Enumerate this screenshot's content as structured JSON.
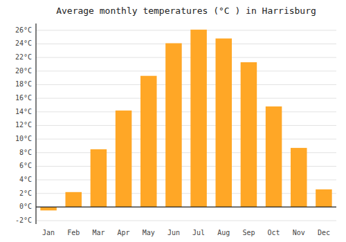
{
  "chart_data": {
    "type": "bar",
    "title": "Average monthly temperatures (°C ) in Harrisburg",
    "categories": [
      "Jan",
      "Feb",
      "Mar",
      "Apr",
      "May",
      "Jun",
      "Jul",
      "Aug",
      "Sep",
      "Oct",
      "Nov",
      "Dec"
    ],
    "values": [
      -0.5,
      2.2,
      8.5,
      14.2,
      19.3,
      24.1,
      26.1,
      24.8,
      21.3,
      14.8,
      8.7,
      2.6
    ],
    "color": "#FFA726",
    "ylim": [
      -2.5,
      27
    ],
    "yticks": [
      {
        "value": -2,
        "label": "-2°C"
      },
      {
        "value": 0,
        "label": "0°C"
      },
      {
        "value": 2,
        "label": "2°C"
      },
      {
        "value": 4,
        "label": "4°C"
      },
      {
        "value": 6,
        "label": "6°C"
      },
      {
        "value": 8,
        "label": "8°C"
      },
      {
        "value": 10,
        "label": "10°C"
      },
      {
        "value": 12,
        "label": "12°C"
      },
      {
        "value": 14,
        "label": "14°C"
      },
      {
        "value": 16,
        "label": "16°C"
      },
      {
        "value": 18,
        "label": "18°C"
      },
      {
        "value": 20,
        "label": "20°C"
      },
      {
        "value": 22,
        "label": "22°C"
      },
      {
        "value": 24,
        "label": "24°C"
      },
      {
        "value": 26,
        "label": "26°C"
      }
    ],
    "grid": true
  }
}
